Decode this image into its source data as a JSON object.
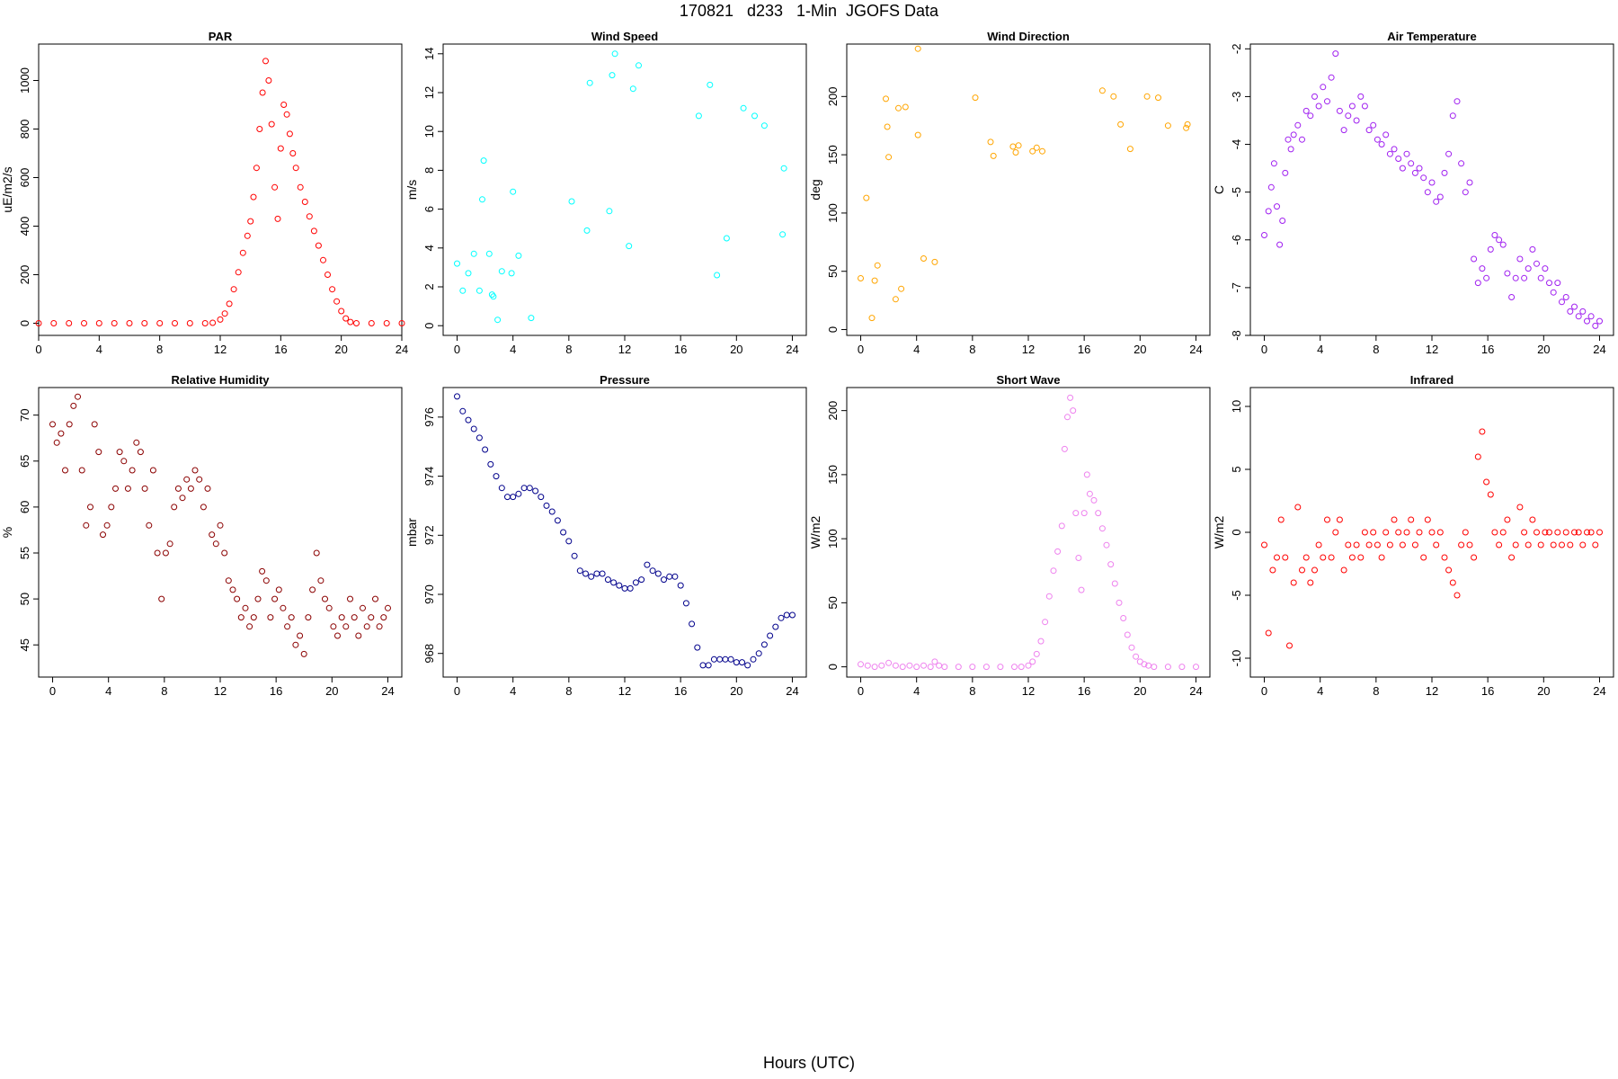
{
  "figure": {
    "title": "170821   d233   1-Min  JGOFS Data",
    "xlabel": "Hours (UTC)"
  },
  "chart_data": [
    {
      "type": "scatter",
      "title": "PAR",
      "ylabel": "uE/m2/s",
      "color": "#ff0000",
      "xlim": [
        0,
        24
      ],
      "ylim": [
        -50,
        1150
      ],
      "xticks": [
        0,
        4,
        8,
        12,
        16,
        20,
        24
      ],
      "yticks": [
        0,
        200,
        400,
        600,
        800,
        1000
      ],
      "x": [
        0,
        1,
        2,
        3,
        4,
        5,
        6,
        7,
        8,
        9,
        10,
        11,
        11.5,
        12,
        12.3,
        12.6,
        12.9,
        13.2,
        13.5,
        13.8,
        14.0,
        14.2,
        14.4,
        14.6,
        14.8,
        15.0,
        15.2,
        15.4,
        15.6,
        15.8,
        16.0,
        16.2,
        16.4,
        16.6,
        16.8,
        17.0,
        17.3,
        17.6,
        17.9,
        18.2,
        18.5,
        18.8,
        19.1,
        19.4,
        19.7,
        20.0,
        20.3,
        20.6,
        21.0,
        22,
        23,
        24
      ],
      "y": [
        0,
        0,
        0,
        0,
        0,
        0,
        0,
        0,
        0,
        0,
        0,
        0,
        2,
        15,
        40,
        80,
        140,
        210,
        290,
        360,
        420,
        520,
        640,
        800,
        950,
        1080,
        1000,
        820,
        560,
        430,
        720,
        900,
        860,
        780,
        700,
        640,
        560,
        500,
        440,
        380,
        320,
        260,
        200,
        140,
        90,
        50,
        20,
        5,
        0,
        0,
        0,
        0
      ]
    },
    {
      "type": "scatter",
      "title": "Wind Speed",
      "ylabel": "m/s",
      "color": "#00ffff",
      "xlim": [
        -1,
        25
      ],
      "ylim": [
        -0.5,
        14.5
      ],
      "xticks": [
        0,
        4,
        8,
        12,
        16,
        20,
        24
      ],
      "yticks": [
        0,
        2,
        4,
        6,
        8,
        10,
        12,
        14
      ],
      "x": [
        0,
        0.4,
        0.8,
        1.2,
        1.6,
        1.8,
        1.9,
        2.3,
        2.5,
        2.6,
        2.9,
        3.2,
        3.9,
        4.0,
        4.4,
        5.3,
        8.2,
        9.3,
        9.5,
        10.9,
        11.1,
        11.3,
        12.3,
        12.6,
        13.0,
        17.3,
        18.1,
        18.6,
        19.3,
        20.5,
        21.3,
        22.0,
        23.3,
        23.4
      ],
      "y": [
        3.2,
        1.8,
        2.7,
        3.7,
        1.8,
        6.5,
        8.5,
        3.7,
        1.6,
        1.5,
        0.3,
        2.8,
        2.7,
        6.9,
        3.6,
        0.4,
        6.4,
        4.9,
        12.5,
        5.9,
        12.9,
        14.0,
        4.1,
        12.2,
        13.4,
        10.8,
        12.4,
        2.6,
        4.5,
        11.2,
        10.8,
        10.3,
        4.7,
        8.1
      ]
    },
    {
      "type": "scatter",
      "title": "Wind Direction",
      "ylabel": "deg",
      "color": "#ffa500",
      "xlim": [
        -1,
        25
      ],
      "ylim": [
        -5,
        245
      ],
      "xticks": [
        0,
        4,
        8,
        12,
        16,
        20,
        24
      ],
      "yticks": [
        0,
        50,
        100,
        150,
        200
      ],
      "x": [
        0,
        0.4,
        0.8,
        1.0,
        1.2,
        1.8,
        1.9,
        2.0,
        2.5,
        2.7,
        2.9,
        3.2,
        4.1,
        4.1,
        4.5,
        5.3,
        8.2,
        9.3,
        9.5,
        10.9,
        11.1,
        11.3,
        12.3,
        12.6,
        13.0,
        17.3,
        18.1,
        18.6,
        19.3,
        20.5,
        21.3,
        22.0,
        23.3,
        23.4
      ],
      "y": [
        44,
        113,
        10,
        42,
        55,
        198,
        174,
        148,
        26,
        190,
        35,
        191,
        167,
        241,
        61,
        58,
        199,
        161,
        149,
        157,
        152,
        158,
        153,
        156,
        153,
        205,
        200,
        176,
        155,
        200,
        199,
        175,
        173,
        176
      ]
    },
    {
      "type": "scatter",
      "title": "Air Temperature",
      "ylabel": "C",
      "color": "#a020f0",
      "xlim": [
        -1,
        25
      ],
      "ylim": [
        -8,
        -1.9
      ],
      "xticks": [
        0,
        4,
        8,
        12,
        16,
        20,
        24
      ],
      "yticks": [
        -2,
        -3,
        -4,
        -5,
        -6,
        -7,
        -8
      ],
      "x": [
        0,
        0.3,
        0.5,
        0.7,
        0.9,
        1.1,
        1.3,
        1.5,
        1.7,
        1.9,
        2.1,
        2.4,
        2.7,
        3.0,
        3.3,
        3.6,
        3.9,
        4.2,
        4.5,
        4.8,
        5.1,
        5.4,
        5.7,
        6.0,
        6.3,
        6.6,
        6.9,
        7.2,
        7.5,
        7.8,
        8.1,
        8.4,
        8.7,
        9.0,
        9.3,
        9.6,
        9.9,
        10.2,
        10.5,
        10.8,
        11.1,
        11.4,
        11.7,
        12.0,
        12.3,
        12.6,
        12.9,
        13.2,
        13.5,
        13.8,
        14.1,
        14.4,
        14.7,
        15.0,
        15.3,
        15.6,
        15.9,
        16.2,
        16.5,
        16.8,
        17.1,
        17.4,
        17.7,
        18.0,
        18.3,
        18.6,
        18.9,
        19.2,
        19.5,
        19.8,
        20.1,
        20.4,
        20.7,
        21.0,
        21.3,
        21.6,
        21.9,
        22.2,
        22.5,
        22.8,
        23.1,
        23.4,
        23.7,
        24.0
      ],
      "y": [
        -5.9,
        -5.4,
        -4.9,
        -4.4,
        -5.3,
        -6.1,
        -5.6,
        -4.6,
        -3.9,
        -4.1,
        -3.8,
        -3.6,
        -3.9,
        -3.3,
        -3.4,
        -3.0,
        -3.2,
        -2.8,
        -3.1,
        -2.6,
        -2.1,
        -3.3,
        -3.7,
        -3.4,
        -3.2,
        -3.5,
        -3.0,
        -3.2,
        -3.7,
        -3.6,
        -3.9,
        -4.0,
        -3.8,
        -4.2,
        -4.1,
        -4.3,
        -4.5,
        -4.2,
        -4.4,
        -4.6,
        -4.5,
        -4.7,
        -5.0,
        -4.8,
        -5.2,
        -5.1,
        -4.6,
        -4.2,
        -3.4,
        -3.1,
        -4.4,
        -5.0,
        -4.8,
        -6.4,
        -6.9,
        -6.6,
        -6.8,
        -6.2,
        -5.9,
        -6.0,
        -6.1,
        -6.7,
        -7.2,
        -6.8,
        -6.4,
        -6.8,
        -6.6,
        -6.2,
        -6.5,
        -6.8,
        -6.6,
        -6.9,
        -7.1,
        -6.9,
        -7.3,
        -7.2,
        -7.5,
        -7.4,
        -7.6,
        -7.5,
        -7.7,
        -7.6,
        -7.8,
        -7.7
      ]
    },
    {
      "type": "scatter",
      "title": "Relative Humidity",
      "ylabel": "%",
      "color": "#8b0000",
      "xlim": [
        -1,
        25
      ],
      "ylim": [
        41.5,
        73
      ],
      "xticks": [
        0,
        4,
        8,
        12,
        16,
        20,
        24
      ],
      "yticks": [
        45,
        50,
        55,
        60,
        65,
        70
      ],
      "x": [
        0,
        0.3,
        0.6,
        0.9,
        1.2,
        1.5,
        1.8,
        2.1,
        2.4,
        2.7,
        3.0,
        3.3,
        3.6,
        3.9,
        4.2,
        4.5,
        4.8,
        5.1,
        5.4,
        5.7,
        6.0,
        6.3,
        6.6,
        6.9,
        7.2,
        7.5,
        7.8,
        8.1,
        8.4,
        8.7,
        9.0,
        9.3,
        9.6,
        9.9,
        10.2,
        10.5,
        10.8,
        11.1,
        11.4,
        11.7,
        12.0,
        12.3,
        12.6,
        12.9,
        13.2,
        13.5,
        13.8,
        14.1,
        14.4,
        14.7,
        15.0,
        15.3,
        15.6,
        15.9,
        16.2,
        16.5,
        16.8,
        17.1,
        17.4,
        17.7,
        18.0,
        18.3,
        18.6,
        18.9,
        19.2,
        19.5,
        19.8,
        20.1,
        20.4,
        20.7,
        21.0,
        21.3,
        21.6,
        21.9,
        22.2,
        22.5,
        22.8,
        23.1,
        23.4,
        23.7,
        24.0
      ],
      "y": [
        69,
        67,
        68,
        64,
        69,
        71,
        72,
        64,
        58,
        60,
        69,
        66,
        57,
        58,
        60,
        62,
        66,
        65,
        62,
        64,
        67,
        66,
        62,
        58,
        64,
        55,
        50,
        55,
        56,
        60,
        62,
        61,
        63,
        62,
        64,
        63,
        60,
        62,
        57,
        56,
        58,
        55,
        52,
        51,
        50,
        48,
        49,
        47,
        48,
        50,
        53,
        52,
        48,
        50,
        51,
        49,
        47,
        48,
        45,
        46,
        44,
        48,
        51,
        55,
        52,
        50,
        49,
        47,
        46,
        48,
        47,
        50,
        48,
        46,
        49,
        47,
        48,
        50,
        47,
        48,
        49
      ]
    },
    {
      "type": "scatter",
      "title": "Pressure",
      "ylabel": "mbar",
      "color": "#00008b",
      "xlim": [
        -1,
        25
      ],
      "ylim": [
        967.2,
        977.0
      ],
      "xticks": [
        0,
        4,
        8,
        12,
        16,
        20,
        24
      ],
      "yticks": [
        968,
        970,
        972,
        974,
        976
      ],
      "x": [
        0,
        0.4,
        0.8,
        1.2,
        1.6,
        2.0,
        2.4,
        2.8,
        3.2,
        3.6,
        4.0,
        4.4,
        4.8,
        5.2,
        5.6,
        6.0,
        6.4,
        6.8,
        7.2,
        7.6,
        8.0,
        8.4,
        8.8,
        9.2,
        9.6,
        10.0,
        10.4,
        10.8,
        11.2,
        11.6,
        12.0,
        12.4,
        12.8,
        13.2,
        13.6,
        14.0,
        14.4,
        14.8,
        15.2,
        15.6,
        16.0,
        16.4,
        16.8,
        17.2,
        17.6,
        18.0,
        18.4,
        18.8,
        19.2,
        19.6,
        20.0,
        20.4,
        20.8,
        21.2,
        21.6,
        22.0,
        22.4,
        22.8,
        23.2,
        23.6,
        24.0
      ],
      "y": [
        976.7,
        976.2,
        975.9,
        975.6,
        975.3,
        974.9,
        974.4,
        974.0,
        973.6,
        973.3,
        973.3,
        973.4,
        973.6,
        973.6,
        973.5,
        973.3,
        973.0,
        972.8,
        972.5,
        972.1,
        971.8,
        971.3,
        970.8,
        970.7,
        970.6,
        970.7,
        970.7,
        970.5,
        970.4,
        970.3,
        970.2,
        970.2,
        970.4,
        970.5,
        971.0,
        970.8,
        970.7,
        970.5,
        970.6,
        970.6,
        970.3,
        969.7,
        969.0,
        968.2,
        967.6,
        967.6,
        967.8,
        967.8,
        967.8,
        967.8,
        967.7,
        967.7,
        967.6,
        967.8,
        968.0,
        968.3,
        968.6,
        968.9,
        969.2,
        969.3,
        969.3
      ]
    },
    {
      "type": "scatter",
      "title": "Short Wave",
      "ylabel": "W/m2",
      "color": "#ee82ee",
      "xlim": [
        -1,
        25
      ],
      "ylim": [
        -8,
        218
      ],
      "xticks": [
        0,
        4,
        8,
        12,
        16,
        20,
        24
      ],
      "yticks": [
        0,
        50,
        100,
        150,
        200
      ],
      "x": [
        0,
        0.5,
        1.0,
        1.5,
        2.0,
        2.5,
        3.0,
        3.5,
        4.0,
        4.5,
        5.0,
        5.3,
        5.6,
        6.0,
        7,
        8,
        9,
        10,
        11,
        11.5,
        12,
        12.3,
        12.6,
        12.9,
        13.2,
        13.5,
        13.8,
        14.1,
        14.4,
        14.6,
        14.8,
        15.0,
        15.2,
        15.4,
        15.6,
        15.8,
        16.0,
        16.2,
        16.4,
        16.7,
        17.0,
        17.3,
        17.6,
        17.9,
        18.2,
        18.5,
        18.8,
        19.1,
        19.4,
        19.7,
        20.0,
        20.3,
        20.6,
        21.0,
        22,
        23,
        24
      ],
      "y": [
        2,
        1,
        0,
        1,
        3,
        1,
        0,
        1,
        0,
        1,
        0,
        4,
        1,
        0,
        0,
        0,
        0,
        0,
        0,
        0,
        1,
        4,
        10,
        20,
        35,
        55,
        75,
        90,
        110,
        170,
        195,
        210,
        200,
        120,
        85,
        60,
        120,
        150,
        135,
        130,
        120,
        108,
        95,
        80,
        65,
        50,
        38,
        25,
        15,
        8,
        4,
        2,
        1,
        0,
        0,
        0,
        0
      ]
    },
    {
      "type": "scatter",
      "title": "Infrared",
      "ylabel": "W/m2",
      "color": "#ff0000",
      "xlim": [
        -1,
        25
      ],
      "ylim": [
        -11.5,
        11.5
      ],
      "xticks": [
        0,
        4,
        8,
        12,
        16,
        20,
        24
      ],
      "yticks": [
        -10,
        -5,
        0,
        5,
        10
      ],
      "x": [
        0,
        0.3,
        0.6,
        0.9,
        1.2,
        1.5,
        1.8,
        2.1,
        2.4,
        2.7,
        3.0,
        3.3,
        3.6,
        3.9,
        4.2,
        4.5,
        4.8,
        5.1,
        5.4,
        5.7,
        6.0,
        6.3,
        6.6,
        6.9,
        7.2,
        7.5,
        7.8,
        8.1,
        8.4,
        8.7,
        9.0,
        9.3,
        9.6,
        9.9,
        10.2,
        10.5,
        10.8,
        11.1,
        11.4,
        11.7,
        12.0,
        12.3,
        12.6,
        12.9,
        13.2,
        13.5,
        13.8,
        14.1,
        14.4,
        14.7,
        15.0,
        15.3,
        15.6,
        15.9,
        16.2,
        16.5,
        16.8,
        17.1,
        17.4,
        17.7,
        18.0,
        18.3,
        18.6,
        18.9,
        19.2,
        19.5,
        19.8,
        20.1,
        20.4,
        20.7,
        21.0,
        21.3,
        21.6,
        21.9,
        22.2,
        22.5,
        22.8,
        23.1,
        23.4,
        23.7,
        24.0
      ],
      "y": [
        -1,
        -8,
        -3,
        -2,
        1,
        -2,
        -9,
        -4,
        2,
        -3,
        -2,
        -4,
        -3,
        -1,
        -2,
        1,
        -2,
        0,
        1,
        -3,
        -1,
        -2,
        -1,
        -2,
        0,
        -1,
        0,
        -1,
        -2,
        0,
        -1,
        1,
        0,
        -1,
        0,
        1,
        -1,
        0,
        -2,
        1,
        0,
        -1,
        0,
        -2,
        -3,
        -4,
        -5,
        -1,
        0,
        -1,
        -2,
        6,
        8,
        4,
        3,
        0,
        -1,
        0,
        1,
        -2,
        -1,
        2,
        0,
        -1,
        1,
        0,
        -1,
        0,
        0,
        -1,
        0,
        -1,
        0,
        -1,
        0,
        0,
        -1,
        0,
        0,
        -1,
        0
      ]
    }
  ]
}
